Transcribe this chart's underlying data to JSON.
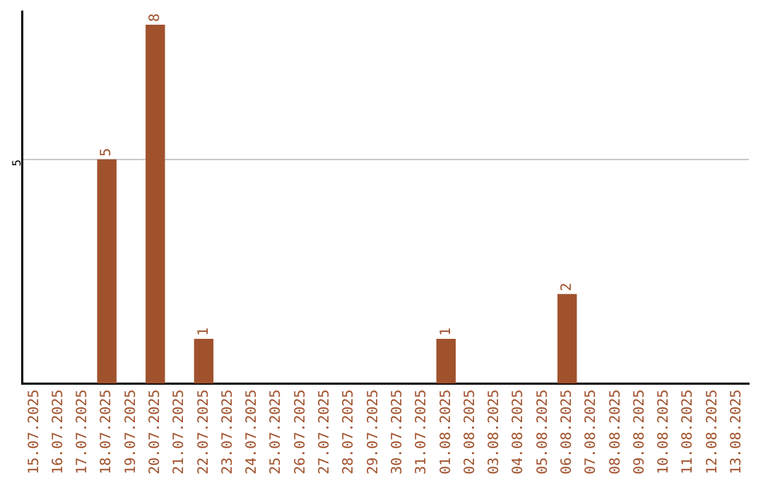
{
  "chart_data": {
    "type": "bar",
    "categories": [
      "15.07.2025",
      "16.07.2025",
      "17.07.2025",
      "18.07.2025",
      "19.07.2025",
      "20.07.2025",
      "21.07.2025",
      "22.07.2025",
      "23.07.2025",
      "24.07.2025",
      "25.07.2025",
      "26.07.2025",
      "27.07.2025",
      "28.07.2025",
      "29.07.2025",
      "30.07.2025",
      "31.07.2025",
      "01.08.2025",
      "02.08.2025",
      "03.08.2025",
      "04.08.2025",
      "05.08.2025",
      "06.08.2025",
      "07.08.2025",
      "08.08.2025",
      "09.08.2025",
      "10.08.2025",
      "11.08.2025",
      "12.08.2025",
      "13.08.2025"
    ],
    "values": [
      null,
      null,
      null,
      5,
      null,
      8,
      null,
      1,
      null,
      null,
      null,
      null,
      null,
      null,
      null,
      null,
      null,
      1,
      null,
      null,
      null,
      null,
      2,
      null,
      null,
      null,
      null,
      null,
      null,
      null
    ],
    "color": "#a0522d",
    "ylim": [
      0,
      8.3
    ],
    "yticks": [
      5
    ],
    "grid": "y",
    "data_labels": true,
    "legend": false
  }
}
